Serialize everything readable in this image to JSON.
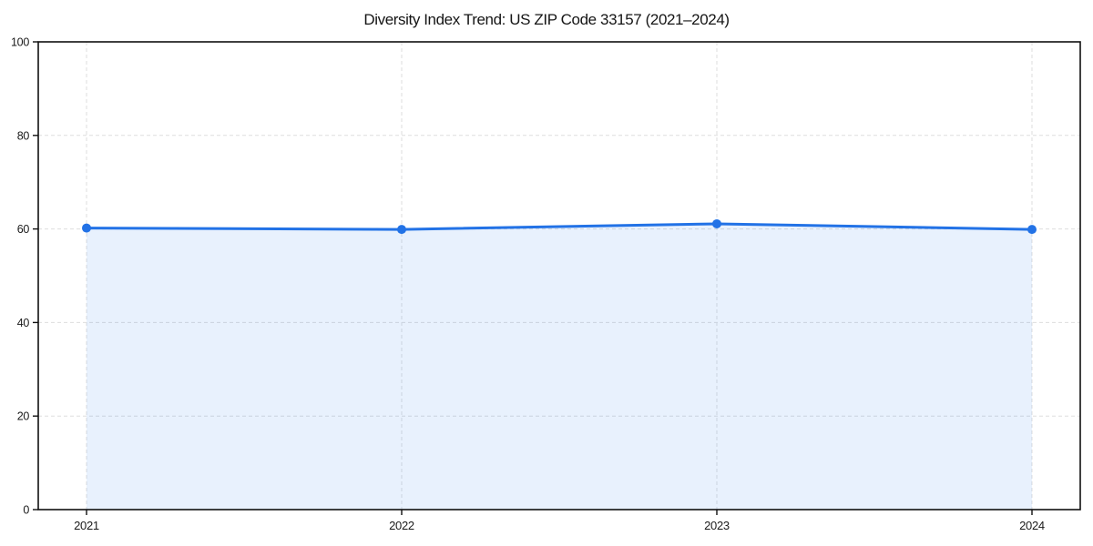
{
  "title": "Diversity Index Trend: US ZIP Code 33157 (2021–2024)",
  "colors": {
    "line": "#2272e6",
    "marker": "#2272e6",
    "area_fill": "#1a73e8",
    "area_fill_opacity": 0.1,
    "grid": "#dedede",
    "axis": "#111111",
    "tick_text": "#1a1a1a",
    "background": "#ffffff"
  },
  "chart_data": {
    "type": "area",
    "title": "Diversity Index Trend: US ZIP Code 33157 (2021–2024)",
    "x": [
      2021,
      2022,
      2023,
      2024
    ],
    "x_tick_labels": [
      "2021",
      "2022",
      "2023",
      "2024"
    ],
    "series": [
      {
        "name": "Diversity Index",
        "values": [
          60.2,
          59.9,
          61.1,
          59.9
        ]
      }
    ],
    "xlabel": "",
    "ylabel": "",
    "ylim": [
      0,
      100
    ],
    "y_ticks": [
      0,
      20,
      40,
      60,
      80,
      100
    ],
    "grid": true,
    "grid_style": "dashed",
    "legend_position": "none",
    "marker": "circle",
    "line_width": 3,
    "marker_radius": 5
  }
}
